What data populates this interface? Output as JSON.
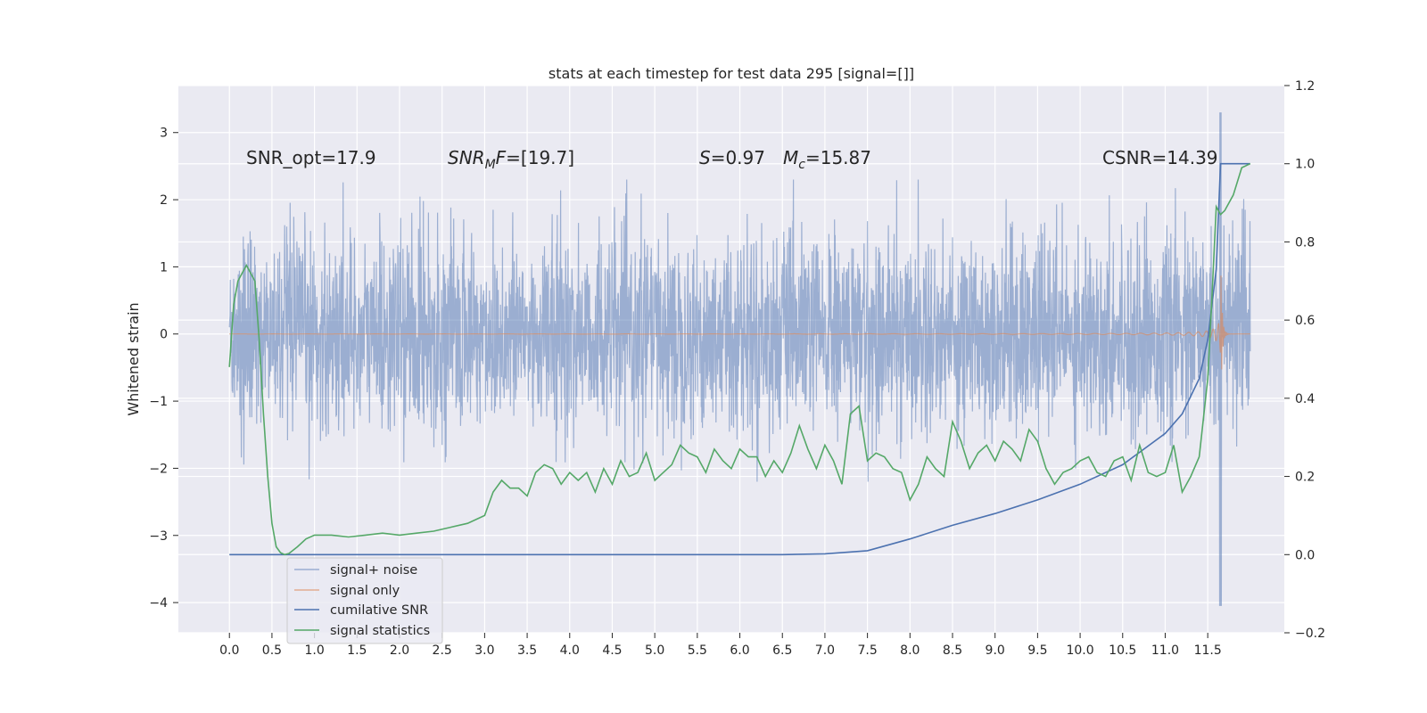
{
  "chart_data": {
    "type": "line",
    "title": "stats at each timestep for test data 295 [signal=[]]",
    "xlabel": "",
    "ylabel": "Whitened strain",
    "xlim": [
      -0.6,
      12.4
    ],
    "ylim": [
      -4.45,
      3.7
    ],
    "y2lim": [
      -0.2,
      1.2
    ],
    "x_ticks": [
      "0.0",
      "0.5",
      "1.0",
      "1.5",
      "2.0",
      "2.5",
      "3.0",
      "3.5",
      "4.0",
      "4.5",
      "5.0",
      "5.5",
      "6.0",
      "6.5",
      "7.0",
      "7.5",
      "8.0",
      "8.5",
      "9.0",
      "9.5",
      "10.0",
      "10.5",
      "11.0",
      "11.5"
    ],
    "y_ticks": [
      "3",
      "2",
      "1",
      "0",
      "−1",
      "−2",
      "−3",
      "−4"
    ],
    "y2_ticks": [
      "1.2",
      "1.0",
      "0.8",
      "0.6",
      "0.4",
      "0.2",
      "0.0",
      "−0.2"
    ],
    "annotations": {
      "snr_opt": "SNR_opt=17.9",
      "snr_mf_prefix": "SNR",
      "snr_mf_sub": "M",
      "snr_mf_f": "F",
      "snr_mf_suffix": "=[19.7]",
      "s_var": "S",
      "s_val": "=0.97",
      "mc_var": "M",
      "mc_sub": "c",
      "mc_val": "=15.87",
      "csnr": "CSNR=14.39"
    },
    "legend_position": "lower-left",
    "series": [
      {
        "name": "signal+ noise",
        "axis": "left",
        "color": "#4c72b0",
        "note": "whitened noise, approx N(0,0.8), time 0 to 12.0 s, spike near 11.65"
      },
      {
        "name": "signal only",
        "axis": "left",
        "color": "#dd8452",
        "note": "chirp envelope growing to ~1.2 at merger ~11.65 s"
      },
      {
        "name": "cumilative SNR",
        "axis": "right",
        "color": "#4c72b0",
        "x": [
          0,
          6.5,
          7.0,
          7.5,
          8.0,
          8.5,
          9.0,
          9.5,
          10.0,
          10.5,
          11.0,
          11.2,
          11.4,
          11.5,
          11.6,
          11.65,
          11.7,
          12.0
        ],
        "values": [
          0.0,
          0.0,
          0.002,
          0.01,
          0.04,
          0.075,
          0.105,
          0.14,
          0.18,
          0.23,
          0.31,
          0.36,
          0.45,
          0.55,
          0.73,
          1.0,
          1.0,
          1.0
        ]
      },
      {
        "name": "signal statistics",
        "axis": "right",
        "color": "#55a868",
        "x": [
          0,
          0.05,
          0.1,
          0.15,
          0.2,
          0.3,
          0.35,
          0.4,
          0.45,
          0.5,
          0.55,
          0.6,
          0.65,
          0.7,
          0.8,
          0.9,
          1.0,
          1.2,
          1.4,
          1.6,
          1.8,
          2.0,
          2.2,
          2.4,
          2.6,
          2.8,
          3.0,
          3.1,
          3.2,
          3.3,
          3.4,
          3.5,
          3.6,
          3.7,
          3.8,
          3.9,
          4.0,
          4.1,
          4.2,
          4.3,
          4.4,
          4.5,
          4.6,
          4.7,
          4.8,
          4.9,
          5.0,
          5.1,
          5.2,
          5.3,
          5.4,
          5.5,
          5.6,
          5.7,
          5.8,
          5.9,
          6.0,
          6.1,
          6.2,
          6.3,
          6.4,
          6.5,
          6.6,
          6.7,
          6.8,
          6.9,
          7.0,
          7.1,
          7.2,
          7.3,
          7.4,
          7.5,
          7.6,
          7.7,
          7.8,
          7.9,
          8.0,
          8.1,
          8.2,
          8.3,
          8.4,
          8.5,
          8.6,
          8.7,
          8.8,
          8.9,
          9.0,
          9.1,
          9.2,
          9.3,
          9.4,
          9.5,
          9.6,
          9.7,
          9.8,
          9.9,
          10.0,
          10.1,
          10.2,
          10.3,
          10.4,
          10.5,
          10.6,
          10.7,
          10.8,
          10.9,
          11.0,
          11.1,
          11.2,
          11.3,
          11.4,
          11.5,
          11.55,
          11.6,
          11.65,
          11.7,
          11.8,
          11.9,
          12.0
        ],
        "values": [
          0.48,
          0.64,
          0.7,
          0.72,
          0.74,
          0.7,
          0.55,
          0.36,
          0.2,
          0.08,
          0.02,
          0.005,
          0.0,
          0.003,
          0.02,
          0.04,
          0.05,
          0.05,
          0.045,
          0.05,
          0.055,
          0.05,
          0.055,
          0.06,
          0.07,
          0.08,
          0.1,
          0.16,
          0.19,
          0.17,
          0.17,
          0.15,
          0.21,
          0.23,
          0.22,
          0.18,
          0.21,
          0.19,
          0.21,
          0.16,
          0.22,
          0.18,
          0.24,
          0.2,
          0.21,
          0.26,
          0.19,
          0.21,
          0.23,
          0.28,
          0.26,
          0.25,
          0.21,
          0.27,
          0.24,
          0.22,
          0.27,
          0.25,
          0.25,
          0.2,
          0.24,
          0.21,
          0.26,
          0.33,
          0.27,
          0.22,
          0.28,
          0.24,
          0.18,
          0.36,
          0.38,
          0.24,
          0.26,
          0.25,
          0.22,
          0.21,
          0.14,
          0.18,
          0.25,
          0.22,
          0.2,
          0.34,
          0.29,
          0.22,
          0.26,
          0.28,
          0.24,
          0.29,
          0.27,
          0.24,
          0.32,
          0.29,
          0.22,
          0.18,
          0.21,
          0.22,
          0.24,
          0.25,
          0.21,
          0.2,
          0.24,
          0.25,
          0.19,
          0.28,
          0.21,
          0.2,
          0.21,
          0.28,
          0.16,
          0.2,
          0.25,
          0.45,
          0.66,
          0.89,
          0.87,
          0.88,
          0.92,
          0.99,
          1.0
        ]
      }
    ]
  }
}
